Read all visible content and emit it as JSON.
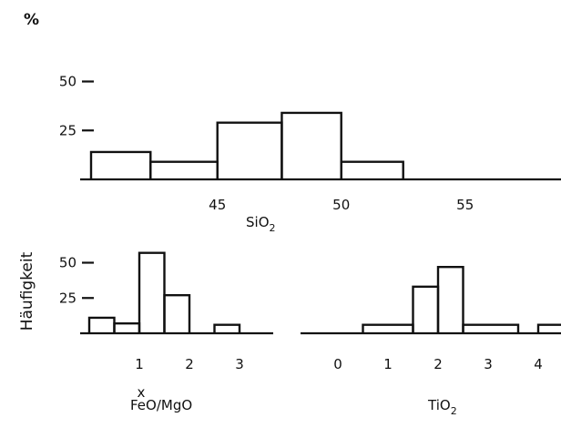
{
  "figure": {
    "percent_symbol": "%",
    "y_axis_title": "Häufigkeit"
  },
  "chart_data": [
    {
      "id": "sio2",
      "type": "histogram",
      "xlabel": "SiO",
      "xlabel_sub": "2",
      "x_ticks": [
        "45",
        "50",
        "55"
      ],
      "x_tick_values": [
        45,
        50,
        55
      ],
      "y_ticks": [
        "25",
        "50"
      ],
      "y_tick_values": [
        25,
        50
      ],
      "y_unit": "%",
      "bins": [
        {
          "from": 39.9,
          "to": 42.3,
          "value": 14
        },
        {
          "from": 42.3,
          "to": 45.0,
          "value": 9
        },
        {
          "from": 45.0,
          "to": 47.6,
          "value": 29
        },
        {
          "from": 47.6,
          "to": 50.0,
          "value": 34
        },
        {
          "from": 50.0,
          "to": 52.5,
          "value": 9
        }
      ]
    },
    {
      "id": "feo_mgo",
      "type": "histogram",
      "xlabel": "FeO/MgO",
      "xlabel_mark": "x",
      "x_ticks": [
        "1",
        "2",
        "3"
      ],
      "x_tick_values": [
        1,
        2,
        3
      ],
      "y_ticks": [
        "25",
        "50"
      ],
      "y_tick_values": [
        25,
        50
      ],
      "y_unit": "%",
      "bins": [
        {
          "from": 0.0,
          "to": 0.5,
          "value": 11
        },
        {
          "from": 0.5,
          "to": 1.0,
          "value": 7
        },
        {
          "from": 1.0,
          "to": 1.5,
          "value": 57
        },
        {
          "from": 1.5,
          "to": 2.0,
          "value": 27
        },
        {
          "from": 2.5,
          "to": 3.0,
          "value": 6
        }
      ]
    },
    {
      "id": "tio2",
      "type": "histogram",
      "xlabel": "TiO",
      "xlabel_sub": "2",
      "x_ticks": [
        "0",
        "1",
        "2",
        "3",
        "4"
      ],
      "x_tick_values": [
        0,
        1,
        2,
        3,
        4
      ],
      "y_unit": "%",
      "bins": [
        {
          "from": 0.5,
          "to": 1.5,
          "value": 6
        },
        {
          "from": 1.5,
          "to": 2.0,
          "value": 33
        },
        {
          "from": 2.0,
          "to": 2.5,
          "value": 47
        },
        {
          "from": 2.5,
          "to": 3.6,
          "value": 6
        },
        {
          "from": 4.0,
          "to": 4.5,
          "value": 6
        }
      ]
    }
  ]
}
